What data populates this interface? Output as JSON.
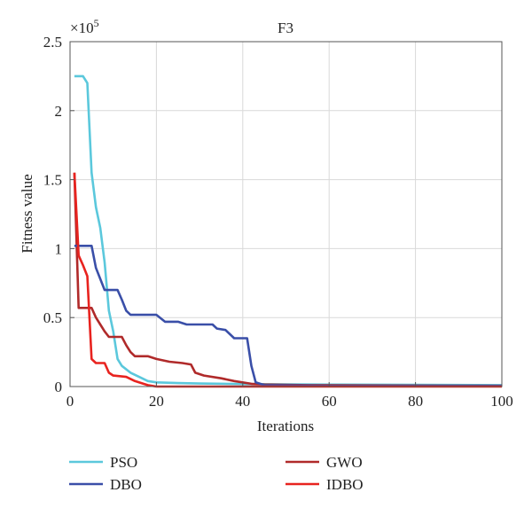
{
  "chart_data": {
    "type": "line",
    "title": "F3",
    "xlabel": "Iterations",
    "ylabel": "Fitness value",
    "y_multiplier": "×10",
    "y_multiplier_exp": "5",
    "xlim": [
      0,
      100
    ],
    "ylim": [
      0,
      2.5
    ],
    "xticks": [
      0,
      20,
      40,
      60,
      80,
      100
    ],
    "yticks": [
      0,
      0.5,
      1,
      1.5,
      2,
      2.5
    ],
    "ytick_labels": [
      "0",
      "0.5",
      "1",
      "1.5",
      "2",
      "2.5"
    ],
    "grid": true,
    "legend_position": "bottom",
    "series": [
      {
        "name": "PSO",
        "color": "#5bc8dc",
        "points": [
          [
            1,
            2.25
          ],
          [
            3,
            2.25
          ],
          [
            4,
            2.2
          ],
          [
            5,
            1.55
          ],
          [
            6,
            1.3
          ],
          [
            7,
            1.15
          ],
          [
            8,
            0.9
          ],
          [
            9,
            0.55
          ],
          [
            10,
            0.4
          ],
          [
            11,
            0.2
          ],
          [
            12,
            0.15
          ],
          [
            14,
            0.1
          ],
          [
            16,
            0.07
          ],
          [
            18,
            0.04
          ],
          [
            20,
            0.03
          ],
          [
            25,
            0.025
          ],
          [
            30,
            0.022
          ],
          [
            40,
            0.018
          ],
          [
            50,
            0.016
          ],
          [
            60,
            0.014
          ],
          [
            80,
            0.012
          ],
          [
            100,
            0.01
          ]
        ]
      },
      {
        "name": "GWO",
        "color": "#b02a2a",
        "points": [
          [
            1,
            1.55
          ],
          [
            2,
            0.57
          ],
          [
            5,
            0.57
          ],
          [
            6,
            0.5
          ],
          [
            7,
            0.45
          ],
          [
            8,
            0.4
          ],
          [
            9,
            0.36
          ],
          [
            12,
            0.36
          ],
          [
            13,
            0.3
          ],
          [
            14,
            0.25
          ],
          [
            15,
            0.22
          ],
          [
            18,
            0.22
          ],
          [
            20,
            0.2
          ],
          [
            23,
            0.18
          ],
          [
            26,
            0.17
          ],
          [
            28,
            0.16
          ],
          [
            29,
            0.1
          ],
          [
            31,
            0.08
          ],
          [
            35,
            0.06
          ],
          [
            38,
            0.04
          ],
          [
            42,
            0.02
          ],
          [
            45,
            0.015
          ],
          [
            55,
            0.01
          ],
          [
            100,
            0.005
          ]
        ]
      },
      {
        "name": "DBO",
        "color": "#3a4fa8",
        "points": [
          [
            1,
            1.02
          ],
          [
            5,
            1.02
          ],
          [
            6,
            0.86
          ],
          [
            7,
            0.78
          ],
          [
            8,
            0.7
          ],
          [
            11,
            0.7
          ],
          [
            12,
            0.63
          ],
          [
            13,
            0.55
          ],
          [
            14,
            0.52
          ],
          [
            20,
            0.52
          ],
          [
            22,
            0.47
          ],
          [
            25,
            0.47
          ],
          [
            27,
            0.45
          ],
          [
            33,
            0.45
          ],
          [
            34,
            0.42
          ],
          [
            36,
            0.41
          ],
          [
            38,
            0.35
          ],
          [
            41,
            0.35
          ],
          [
            42,
            0.15
          ],
          [
            43,
            0.03
          ],
          [
            45,
            0.01
          ],
          [
            60,
            0.005
          ],
          [
            100,
            0.005
          ]
        ]
      },
      {
        "name": "IDBO",
        "color": "#e8231f",
        "points": [
          [
            1,
            1.55
          ],
          [
            2,
            0.95
          ],
          [
            3,
            0.88
          ],
          [
            4,
            0.8
          ],
          [
            5,
            0.2
          ],
          [
            6,
            0.17
          ],
          [
            8,
            0.17
          ],
          [
            9,
            0.1
          ],
          [
            10,
            0.08
          ],
          [
            13,
            0.07
          ],
          [
            15,
            0.04
          ],
          [
            17,
            0.02
          ],
          [
            18,
            0.01
          ],
          [
            20,
            0.0
          ],
          [
            100,
            0.0
          ]
        ]
      }
    ]
  }
}
